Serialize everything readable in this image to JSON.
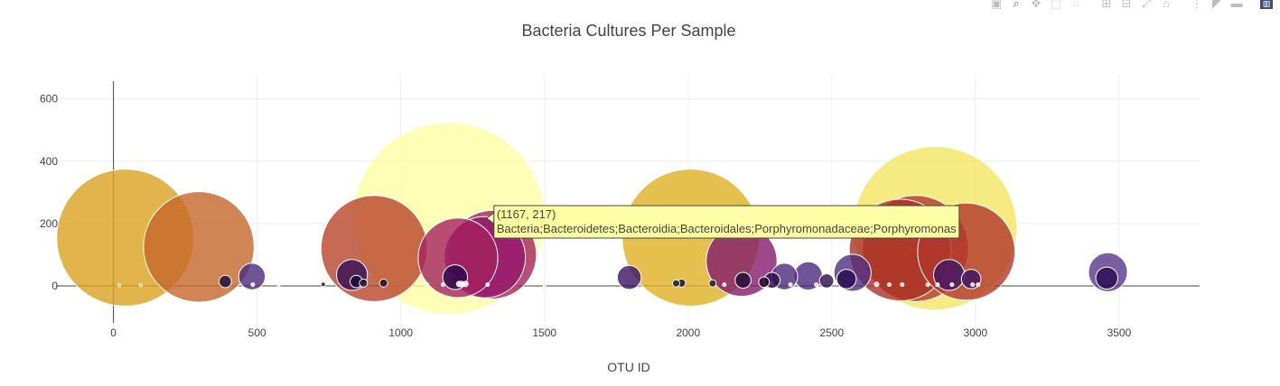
{
  "modebar": {
    "icons": [
      {
        "name": "camera-icon",
        "glyph": "▣"
      },
      {
        "name": "zoom-icon",
        "glyph": "⌕",
        "active": true
      },
      {
        "name": "pan-icon",
        "glyph": "✥"
      },
      {
        "name": "box-select-icon",
        "glyph": "⬚"
      },
      {
        "name": "lasso-select-icon",
        "glyph": "◌"
      },
      {
        "name": "sep"
      },
      {
        "name": "zoom-in-icon",
        "glyph": "⊞"
      },
      {
        "name": "zoom-out-icon",
        "glyph": "⊟"
      },
      {
        "name": "autoscale-icon",
        "glyph": "⤢"
      },
      {
        "name": "reset-axes-icon",
        "glyph": "⌂"
      },
      {
        "name": "sep"
      },
      {
        "name": "spike-lines-icon",
        "glyph": "⋮"
      },
      {
        "name": "hover-closest-icon",
        "glyph": "◤"
      },
      {
        "name": "hover-compare-icon",
        "glyph": "▬"
      },
      {
        "name": "sep"
      },
      {
        "name": "plotly-logo-icon",
        "glyph": "▥",
        "logo": true
      }
    ]
  },
  "chart_data": {
    "type": "scatter",
    "variant": "bubble",
    "title": "Bacteria Cultures Per Sample",
    "xlabel": "OTU ID",
    "ylabel": "",
    "xlim": [
      -200,
      3780
    ],
    "ylim": [
      -165,
      680
    ],
    "xticks": [
      0,
      500,
      1000,
      1500,
      2000,
      2500,
      3000,
      3500
    ],
    "yticks": [
      0,
      200,
      400,
      600
    ],
    "grid": true,
    "legend": "none",
    "colorscale": "Inferno",
    "points": [
      {
        "x": 1167,
        "y": 217,
        "size": 217,
        "color": "#fcffa4"
      },
      {
        "x": 2859,
        "y": 185,
        "size": 185,
        "color": "#f2e661"
      },
      {
        "x": 41,
        "y": 155,
        "size": 155,
        "color": "#d9a21f"
      },
      {
        "x": 2009,
        "y": 155,
        "size": 155,
        "color": "#e0b022"
      },
      {
        "x": 297,
        "y": 125,
        "size": 125,
        "color": "#c5672a"
      },
      {
        "x": 907,
        "y": 120,
        "size": 120,
        "color": "#b8452a"
      },
      {
        "x": 2738,
        "y": 115,
        "size": 115,
        "color": "#ab3024"
      },
      {
        "x": 2791,
        "y": 120,
        "size": 120,
        "color": "#b53829"
      },
      {
        "x": 2968,
        "y": 110,
        "size": 110,
        "color": "#b2372b"
      },
      {
        "x": 1318,
        "y": 100,
        "size": 100,
        "color": "#a5225e"
      },
      {
        "x": 1292,
        "y": 92,
        "size": 92,
        "color": "#95166c"
      },
      {
        "x": 1199,
        "y": 90,
        "size": 90,
        "color": "#a4225f"
      },
      {
        "x": 2186,
        "y": 80,
        "size": 80,
        "color": "#851a6b"
      },
      {
        "x": 3461,
        "y": 44,
        "size": 44,
        "color": "#5a3589"
      },
      {
        "x": 2572,
        "y": 42,
        "size": 42,
        "color": "#4f2d7f"
      },
      {
        "x": 2418,
        "y": 32,
        "size": 32,
        "color": "#4a2a80"
      },
      {
        "x": 2908,
        "y": 35,
        "size": 35,
        "color": "#3e1665"
      },
      {
        "x": 830,
        "y": 35,
        "size": 35,
        "color": "#360f55"
      },
      {
        "x": 2335,
        "y": 30,
        "size": 30,
        "color": "#4b2a7c"
      },
      {
        "x": 1795,
        "y": 27,
        "size": 27,
        "color": "#3a1260"
      },
      {
        "x": 482,
        "y": 30,
        "size": 30,
        "color": "#4c2a7c"
      },
      {
        "x": 1189,
        "y": 28,
        "size": 28,
        "color": "#25094c"
      },
      {
        "x": 3457,
        "y": 25,
        "size": 25,
        "color": "#2b0a4f"
      },
      {
        "x": 2551,
        "y": 22,
        "size": 22,
        "color": "#25094c"
      },
      {
        "x": 2985,
        "y": 22,
        "size": 22,
        "color": "#3a1260"
      },
      {
        "x": 2191,
        "y": 18,
        "size": 18,
        "color": "#1d0a36"
      },
      {
        "x": 2292,
        "y": 18,
        "size": 18,
        "color": "#2a0b47"
      },
      {
        "x": 2482,
        "y": 16,
        "size": 16,
        "color": "#2a0b47"
      },
      {
        "x": 389,
        "y": 14,
        "size": 14,
        "color": "#1c0a34"
      },
      {
        "x": 845,
        "y": 14,
        "size": 14,
        "color": "#1c0a34"
      },
      {
        "x": 2264,
        "y": 12,
        "size": 12,
        "color": "#1b0930"
      },
      {
        "x": 1977,
        "y": 9,
        "size": 9,
        "color": "#120721"
      },
      {
        "x": 870,
        "y": 9,
        "size": 9,
        "color": "#1a0a2a"
      },
      {
        "x": 940,
        "y": 9,
        "size": 9,
        "color": "#1a0a2a"
      },
      {
        "x": 2085,
        "y": 8,
        "size": 8,
        "color": "#150824"
      },
      {
        "x": 1958,
        "y": 8,
        "size": 8,
        "color": "#150824"
      },
      {
        "x": 730,
        "y": 5,
        "size": 5,
        "color": "#150824"
      },
      {
        "x": 1225,
        "y": 6,
        "size": 6,
        "color": "#ffffff"
      },
      {
        "x": 1211,
        "y": 6,
        "size": 6,
        "color": "#ffffff"
      },
      {
        "x": 1203,
        "y": 6,
        "size": 6,
        "color": "#ffffff"
      },
      {
        "x": 2656,
        "y": 5,
        "size": 5,
        "color": "#ffffff"
      },
      {
        "x": 2700,
        "y": 4,
        "size": 4,
        "color": "#ffffff"
      },
      {
        "x": 2745,
        "y": 4,
        "size": 4,
        "color": "#ffffff"
      },
      {
        "x": 2834,
        "y": 4,
        "size": 4,
        "color": "#ffffff"
      },
      {
        "x": 2868,
        "y": 4,
        "size": 4,
        "color": "#ffffff"
      },
      {
        "x": 3009,
        "y": 4,
        "size": 4,
        "color": "#ffffff"
      },
      {
        "x": 1302,
        "y": 4,
        "size": 4,
        "color": "#ffffff"
      },
      {
        "x": 1091,
        "y": 4,
        "size": 4,
        "color": "#ffffff"
      },
      {
        "x": 1147,
        "y": 4,
        "size": 4,
        "color": "#ffffff"
      },
      {
        "x": 485,
        "y": 4,
        "size": 4,
        "color": "#ffffff"
      },
      {
        "x": 2126,
        "y": 4,
        "size": 4,
        "color": "#ffffff"
      },
      {
        "x": 2356,
        "y": 4,
        "size": 4,
        "color": "#ffffff"
      },
      {
        "x": 2446,
        "y": 4,
        "size": 4,
        "color": "#ffffff"
      },
      {
        "x": 2918,
        "y": 4,
        "size": 4,
        "color": "#ffffff"
      },
      {
        "x": 2990,
        "y": 4,
        "size": 4,
        "color": "#ffffff"
      },
      {
        "x": 20,
        "y": 2,
        "size": 2,
        "color": "#e8b52f"
      },
      {
        "x": 95,
        "y": 2,
        "size": 2,
        "color": "#e8b52f"
      },
      {
        "x": 575,
        "y": 2,
        "size": 2,
        "color": "#dddddd"
      },
      {
        "x": 1500,
        "y": 2,
        "size": 2,
        "color": "#dddddd"
      }
    ],
    "hover": {
      "x": 1167,
      "y": 217,
      "coord_text": "(1167, 217)",
      "label": "Bacteria;Bacteroidetes;Bacteroidia;Bacteroidales;Porphyromonadaceae;Porphyromonas"
    }
  }
}
